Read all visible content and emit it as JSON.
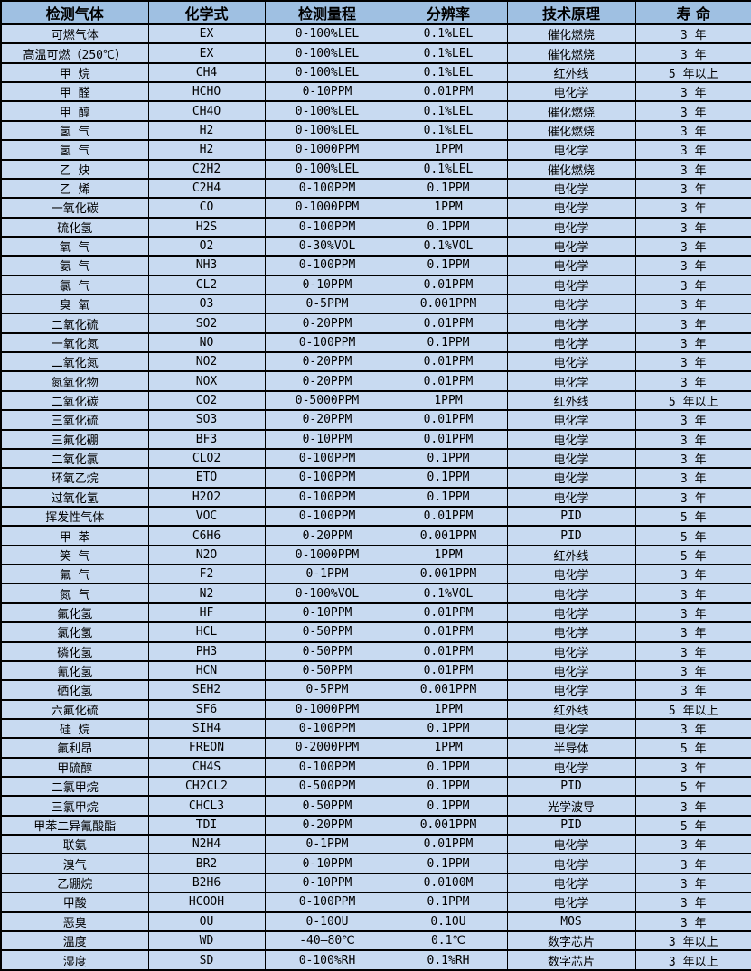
{
  "table": {
    "columns": [
      {
        "key": "gas",
        "label": "检测气体"
      },
      {
        "key": "formula",
        "label": "化学式"
      },
      {
        "key": "range",
        "label": "检测量程"
      },
      {
        "key": "resolution",
        "label": "分辨率"
      },
      {
        "key": "principle",
        "label": "技术原理"
      },
      {
        "key": "lifespan",
        "label": "寿 命"
      }
    ],
    "rows": [
      [
        "可燃气体",
        "EX",
        "0-100%LEL",
        "0.1%LEL",
        "催化燃烧",
        "3 年"
      ],
      [
        "高温可燃（250℃）",
        "EX",
        "0-100%LEL",
        "0.1%LEL",
        "催化燃烧",
        "3 年"
      ],
      [
        "甲 烷",
        "CH4",
        "0-100%LEL",
        "0.1%LEL",
        "红外线",
        "5 年以上"
      ],
      [
        "甲 醛",
        "HCHO",
        "0-10PPM",
        "0.01PPM",
        "电化学",
        "3 年"
      ],
      [
        "甲 醇",
        "CH4O",
        "0-100%LEL",
        "0.1%LEL",
        "催化燃烧",
        "3 年"
      ],
      [
        "氢 气",
        "H2",
        "0-100%LEL",
        "0.1%LEL",
        "催化燃烧",
        "3 年"
      ],
      [
        "氢 气",
        "H2",
        "0-1000PPM",
        "1PPM",
        "电化学",
        "3 年"
      ],
      [
        "乙 炔",
        "C2H2",
        "0-100%LEL",
        "0.1%LEL",
        "催化燃烧",
        "3 年"
      ],
      [
        "乙 烯",
        "C2H4",
        "0-100PPM",
        "0.1PPM",
        "电化学",
        "3 年"
      ],
      [
        "一氧化碳",
        "CO",
        "0-1000PPM",
        "1PPM",
        "电化学",
        "3 年"
      ],
      [
        "硫化氢",
        "H2S",
        "0-100PPM",
        "0.1PPM",
        "电化学",
        "3 年"
      ],
      [
        "氧 气",
        "O2",
        "0-30%VOL",
        "0.1%VOL",
        "电化学",
        "3 年"
      ],
      [
        "氨 气",
        "NH3",
        "0-100PPM",
        "0.1PPM",
        "电化学",
        "3 年"
      ],
      [
        "氯 气",
        "CL2",
        "0-10PPM",
        "0.01PPM",
        "电化学",
        "3 年"
      ],
      [
        "臭 氧",
        "O3",
        "0-5PPM",
        "0.001PPM",
        "电化学",
        "3 年"
      ],
      [
        "二氧化硫",
        "SO2",
        "0-20PPM",
        "0.01PPM",
        "电化学",
        "3 年"
      ],
      [
        "一氧化氮",
        "NO",
        "0-100PPM",
        "0.1PPM",
        "电化学",
        "3 年"
      ],
      [
        "二氧化氮",
        "NO2",
        "0-20PPM",
        "0.01PPM",
        "电化学",
        "3 年"
      ],
      [
        "氮氧化物",
        "NOX",
        "0-20PPM",
        "0.01PPM",
        "电化学",
        "3 年"
      ],
      [
        "二氧化碳",
        "CO2",
        "0-5000PPM",
        "1PPM",
        "红外线",
        "5 年以上"
      ],
      [
        "三氧化硫",
        "SO3",
        "0-20PPM",
        "0.01PPM",
        "电化学",
        "3 年"
      ],
      [
        "三氟化硼",
        "BF3",
        "0-10PPM",
        "0.01PPM",
        "电化学",
        "3 年"
      ],
      [
        "二氧化氯",
        "CLO2",
        "0-100PPM",
        "0.1PPM",
        "电化学",
        "3 年"
      ],
      [
        "环氧乙烷",
        "ETO",
        "0-100PPM",
        "0.1PPM",
        "电化学",
        "3 年"
      ],
      [
        "过氧化氢",
        "H2O2",
        "0-100PPM",
        "0.1PPM",
        "电化学",
        "3 年"
      ],
      [
        "挥发性气体",
        "VOC",
        "0-100PPM",
        "0.01PPM",
        "PID",
        "5 年"
      ],
      [
        "甲 苯",
        "C6H6",
        "0-20PPM",
        "0.001PPM",
        "PID",
        "5 年"
      ],
      [
        "笑 气",
        "N2O",
        "0-1000PPM",
        "1PPM",
        "红外线",
        "5 年"
      ],
      [
        "氟 气",
        "F2",
        "0-1PPM",
        "0.001PPM",
        "电化学",
        "3 年"
      ],
      [
        "氮 气",
        "N2",
        "0-100%VOL",
        "0.1%VOL",
        "电化学",
        "3 年"
      ],
      [
        "氟化氢",
        "HF",
        "0-10PPM",
        "0.01PPM",
        "电化学",
        "3 年"
      ],
      [
        "氯化氢",
        "HCL",
        "0-50PPM",
        "0.01PPM",
        "电化学",
        "3 年"
      ],
      [
        "磷化氢",
        "PH3",
        "0-50PPM",
        "0.01PPM",
        "电化学",
        "3 年"
      ],
      [
        "氰化氢",
        "HCN",
        "0-50PPM",
        "0.01PPM",
        "电化学",
        "3 年"
      ],
      [
        "硒化氢",
        "SEH2",
        "0-5PPM",
        "0.001PPM",
        "电化学",
        "3 年"
      ],
      [
        "六氟化硫",
        "SF6",
        "0-1000PPM",
        "1PPM",
        "红外线",
        "5 年以上"
      ],
      [
        "硅 烷",
        "SIH4",
        "0-100PPM",
        "0.1PPM",
        "电化学",
        "3 年"
      ],
      [
        "氟利昂",
        "FREON",
        "0-2000PPM",
        "1PPM",
        "半导体",
        "5 年"
      ],
      [
        "甲硫醇",
        "CH4S",
        "0-100PPM",
        "0.1PPM",
        "电化学",
        "3 年"
      ],
      [
        "二氯甲烷",
        "CH2CL2",
        "0-500PPM",
        "0.1PPM",
        "PID",
        "5 年"
      ],
      [
        "三氯甲烷",
        "CHCL3",
        "0-50PPM",
        "0.1PPM",
        "光学波导",
        "3 年"
      ],
      [
        "甲苯二异氰酸酯",
        "TDI",
        "0-20PPM",
        "0.001PPM",
        "PID",
        "5 年"
      ],
      [
        "联氨",
        "N2H4",
        "0-1PPM",
        "0.01PPM",
        "电化学",
        "3 年"
      ],
      [
        "溴气",
        "BR2",
        "0-10PPM",
        "0.1PPM",
        "电化学",
        "3 年"
      ],
      [
        "乙硼烷",
        "B2H6",
        "0-10PPM",
        "0.0100M",
        "电化学",
        "3 年"
      ],
      [
        "甲酸",
        "HCOOH",
        "0-100PPM",
        "0.1PPM",
        "电化学",
        "3 年"
      ],
      [
        "恶臭",
        "OU",
        "0-10OU",
        "0.1OU",
        "MOS",
        "3 年"
      ],
      [
        "温度",
        "WD",
        "-40—80℃",
        "0.1℃",
        "数字芯片",
        "3 年以上"
      ],
      [
        "湿度",
        "SD",
        "0-100%RH",
        "0.1%RH",
        "数字芯片",
        "3 年以上"
      ]
    ]
  },
  "colors": {
    "header_bg": "#9fc0e2",
    "row_bg": "#c8daf1",
    "border": "#000000",
    "text": "#000000"
  }
}
